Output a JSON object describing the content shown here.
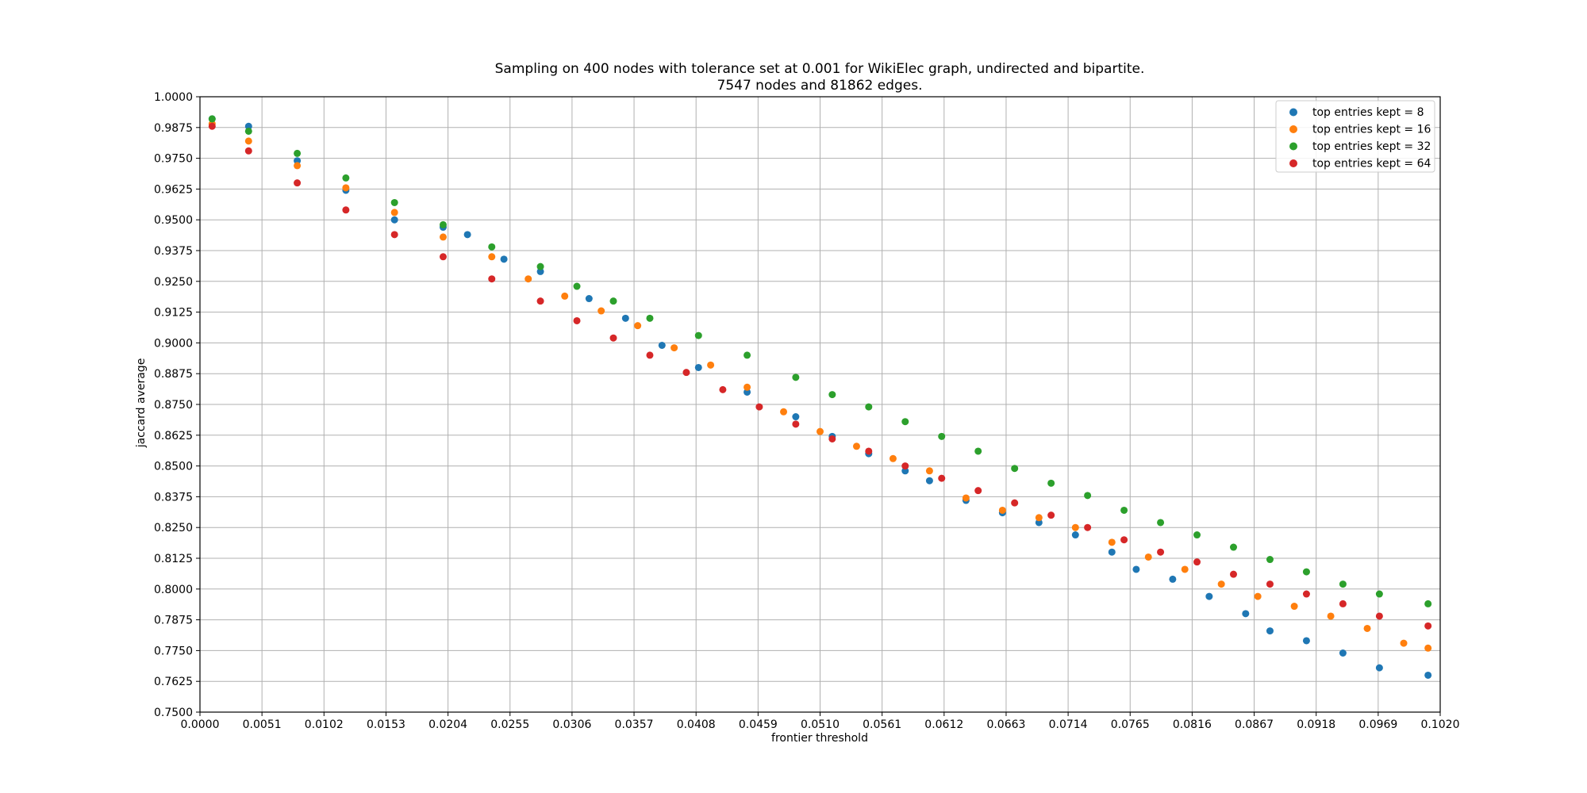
{
  "chart_data": {
    "type": "scatter",
    "title": "Sampling on 400 nodes with tolerance set at 0.001 for WikiElec graph, undirected and bipartite.",
    "subtitle": "7547 nodes and 81862 edges.",
    "xlabel": "frontier threshold",
    "ylabel": "jaccard average",
    "xlim": [
      0.0,
      0.102
    ],
    "ylim": [
      0.75,
      1.0
    ],
    "xticks": [
      "0.0000",
      "0.0051",
      "0.0102",
      "0.0153",
      "0.0204",
      "0.0255",
      "0.0306",
      "0.0357",
      "0.0408",
      "0.0459",
      "0.0510",
      "0.0561",
      "0.0612",
      "0.0663",
      "0.0714",
      "0.0765",
      "0.0816",
      "0.0867",
      "0.0918",
      "0.0969",
      "0.1020"
    ],
    "yticks": [
      "0.7500",
      "0.7625",
      "0.7750",
      "0.7875",
      "0.8000",
      "0.8125",
      "0.8250",
      "0.8375",
      "0.8500",
      "0.8625",
      "0.8750",
      "0.8875",
      "0.9000",
      "0.9125",
      "0.9250",
      "0.9375",
      "0.9500",
      "0.9625",
      "0.9750",
      "0.9875",
      "1.0000"
    ],
    "grid": true,
    "legend_position": "top-right",
    "series": [
      {
        "name": "top entries kept = 8",
        "color": "#1f77b4",
        "x": [
          0.001,
          0.004,
          0.008,
          0.012,
          0.016,
          0.02,
          0.022,
          0.025,
          0.028,
          0.032,
          0.035,
          0.038,
          0.041,
          0.045,
          0.049,
          0.052,
          0.055,
          0.058,
          0.06,
          0.063,
          0.066,
          0.069,
          0.072,
          0.075,
          0.077,
          0.08,
          0.083,
          0.086,
          0.088,
          0.091,
          0.094,
          0.097,
          0.101
        ],
        "y": [
          0.991,
          0.988,
          0.974,
          0.962,
          0.95,
          0.947,
          0.944,
          0.934,
          0.929,
          0.918,
          0.91,
          0.899,
          0.89,
          0.88,
          0.87,
          0.862,
          0.855,
          0.848,
          0.844,
          0.836,
          0.831,
          0.827,
          0.822,
          0.815,
          0.808,
          0.804,
          0.797,
          0.79,
          0.783,
          0.779,
          0.774,
          0.768,
          0.765
        ]
      },
      {
        "name": "top entries kept = 16",
        "color": "#ff7f0e",
        "x": [
          0.001,
          0.004,
          0.008,
          0.012,
          0.016,
          0.02,
          0.024,
          0.027,
          0.03,
          0.033,
          0.036,
          0.039,
          0.042,
          0.045,
          0.048,
          0.051,
          0.054,
          0.057,
          0.06,
          0.063,
          0.066,
          0.069,
          0.072,
          0.075,
          0.078,
          0.081,
          0.084,
          0.087,
          0.09,
          0.093,
          0.096,
          0.099,
          0.101
        ],
        "y": [
          0.989,
          0.982,
          0.972,
          0.963,
          0.953,
          0.943,
          0.935,
          0.926,
          0.919,
          0.913,
          0.907,
          0.898,
          0.891,
          0.882,
          0.872,
          0.864,
          0.858,
          0.853,
          0.848,
          0.837,
          0.832,
          0.829,
          0.825,
          0.819,
          0.813,
          0.808,
          0.802,
          0.797,
          0.793,
          0.789,
          0.784,
          0.778,
          0.776
        ]
      },
      {
        "name": "top entries kept = 32",
        "color": "#2ca02c",
        "x": [
          0.001,
          0.004,
          0.008,
          0.012,
          0.016,
          0.02,
          0.024,
          0.028,
          0.031,
          0.034,
          0.037,
          0.041,
          0.045,
          0.049,
          0.052,
          0.055,
          0.058,
          0.061,
          0.064,
          0.067,
          0.07,
          0.073,
          0.076,
          0.079,
          0.082,
          0.085,
          0.088,
          0.091,
          0.094,
          0.097,
          0.101
        ],
        "y": [
          0.991,
          0.986,
          0.977,
          0.967,
          0.957,
          0.948,
          0.939,
          0.931,
          0.923,
          0.917,
          0.91,
          0.903,
          0.895,
          0.886,
          0.879,
          0.874,
          0.868,
          0.862,
          0.856,
          0.849,
          0.843,
          0.838,
          0.832,
          0.827,
          0.822,
          0.817,
          0.812,
          0.807,
          0.802,
          0.798,
          0.794
        ]
      },
      {
        "name": "top entries kept = 64",
        "color": "#d62728",
        "x": [
          0.001,
          0.004,
          0.008,
          0.012,
          0.016,
          0.02,
          0.024,
          0.028,
          0.031,
          0.034,
          0.037,
          0.04,
          0.043,
          0.046,
          0.049,
          0.052,
          0.055,
          0.058,
          0.061,
          0.064,
          0.067,
          0.07,
          0.073,
          0.076,
          0.079,
          0.082,
          0.085,
          0.088,
          0.091,
          0.094,
          0.097,
          0.101
        ],
        "y": [
          0.988,
          0.978,
          0.965,
          0.954,
          0.944,
          0.935,
          0.926,
          0.917,
          0.909,
          0.902,
          0.895,
          0.888,
          0.881,
          0.874,
          0.867,
          0.861,
          0.856,
          0.85,
          0.845,
          0.84,
          0.835,
          0.83,
          0.825,
          0.82,
          0.815,
          0.811,
          0.806,
          0.802,
          0.798,
          0.794,
          0.789,
          0.785
        ]
      }
    ]
  }
}
